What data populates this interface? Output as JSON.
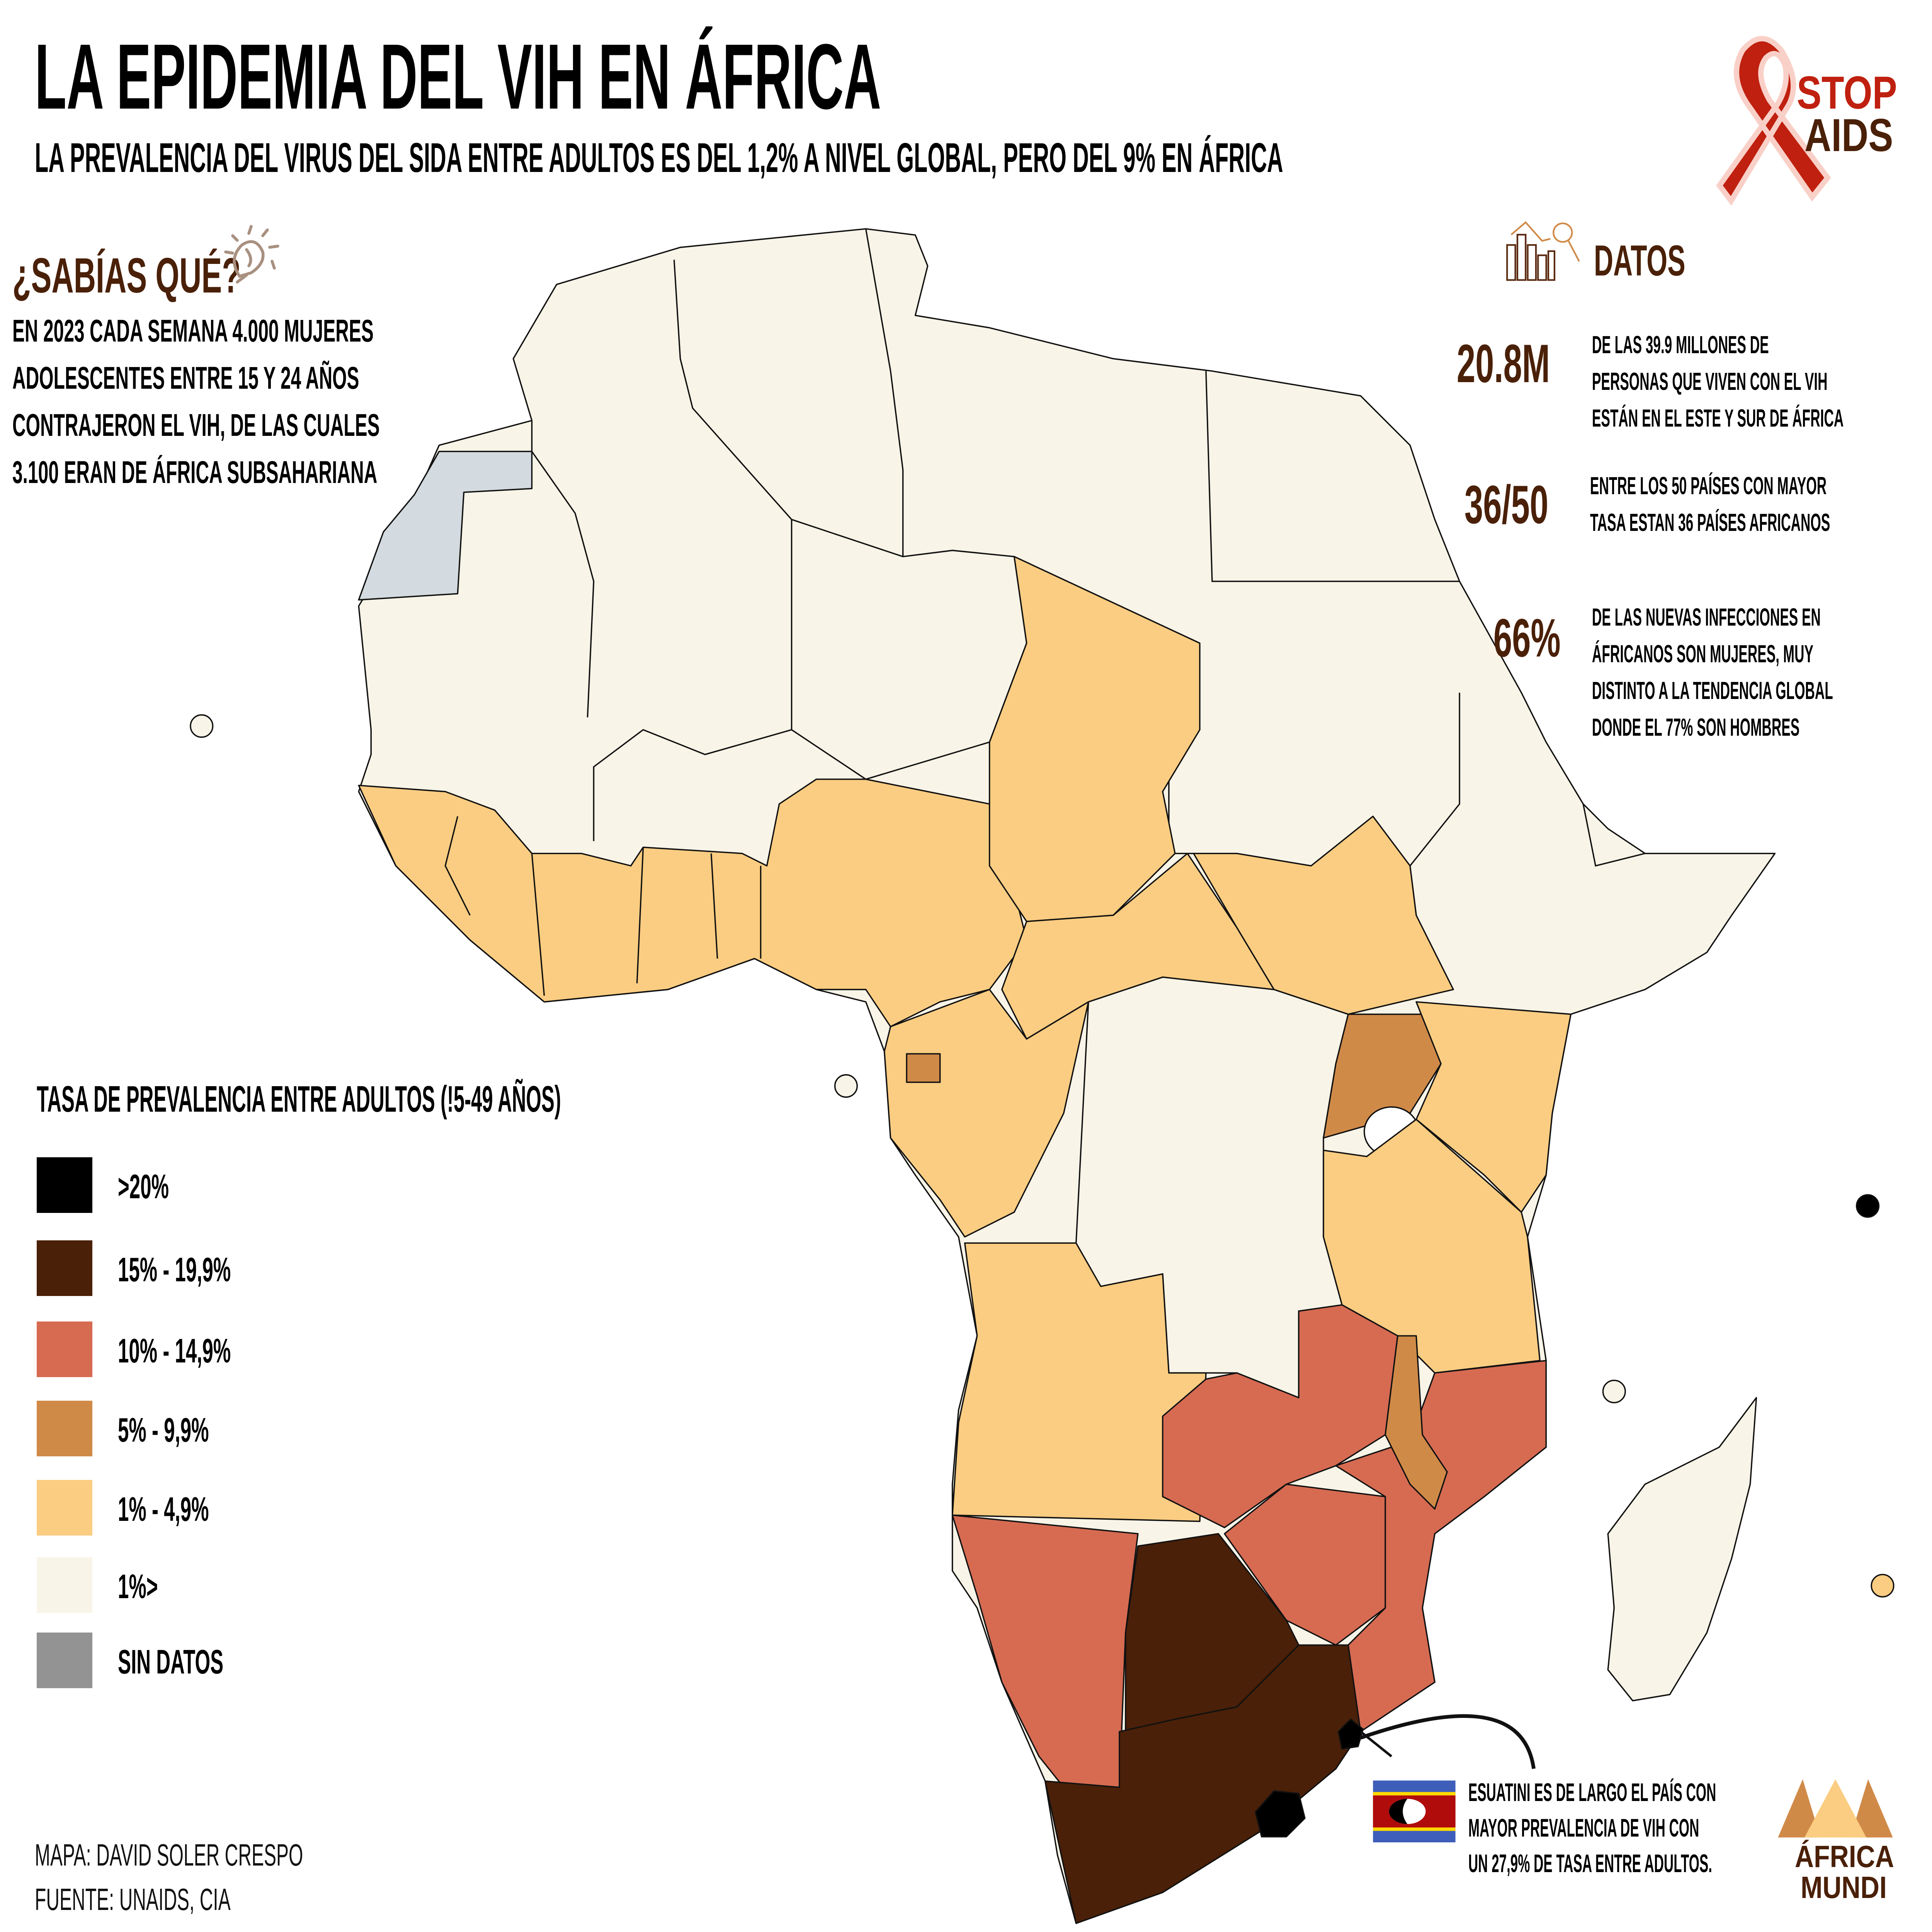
{
  "header": {
    "title": "LA EPIDEMIA DEL VIH EN ÁFRICA",
    "subtitle": "LA PREVALENCIA DEL VIRUS DEL SIDA ENTRE ADULTOS ES DEL 1,2% A NIVEL GLOBAL, PERO DEL 9% EN ÁFRICA",
    "logo_text": [
      "STOP",
      "AIDS"
    ]
  },
  "did_you_know": {
    "heading": "¿SABÍAS QUÉ?",
    "icon": "lightbulb-icon",
    "lines": [
      "EN 2023 CADA SEMANA 4.000 MUJERES",
      "ADOLESCENTES ENTRE  15 Y 24 AÑOS",
      "CONTRAJERON EL VIH, DE LAS CUALES",
      "3.100 ERAN DE ÁFRICA SUBSAHARIANA"
    ]
  },
  "facts": {
    "heading": "DATOS",
    "icon": "chart-magnifier-icon",
    "items": [
      {
        "number": "20.8M",
        "lines": [
          "DE LAS 39.9 MILLONES DE",
          "PERSONAS QUE VIVEN CON EL VIH",
          "ESTÁN EN EL ESTE Y SUR DE ÁFRICA"
        ]
      },
      {
        "number": "36/50",
        "lines": [
          "ENTRE LOS 50 PAÍSES CON MAYOR",
          "TASA ESTAN 36 PAÍSES AFRICANOS"
        ]
      },
      {
        "number": "66%",
        "lines": [
          "DE LAS NUEVAS INFECCIONES EN",
          "ÁFRICANOS SON MUJERES, MUY",
          "DISTINTO A LA TENDENCIA GLOBAL",
          "DONDE EL 77% SON HOMBRES"
        ]
      }
    ]
  },
  "legend": {
    "title": "TASA DE PREVALENCIA ENTRE ADULTOS (!5-49 AÑOS)",
    "items": [
      {
        "label": ">20%",
        "color": "#000000"
      },
      {
        "label": "15% - 19,9%",
        "color": "#4a2008"
      },
      {
        "label": "10% - 14,9%",
        "color": "#d66b52"
      },
      {
        "label": "5% - 9,9%",
        "color": "#d08a48"
      },
      {
        "label": "1% - 4,9%",
        "color": "#fbcd82"
      },
      {
        "label": "1%>",
        "color": "#f8f4e7"
      },
      {
        "label": "SIN DATOS",
        "color": "#939393"
      }
    ]
  },
  "callout": {
    "flag": "eswatini-flag",
    "lines": [
      "ESUATINI ES DE LARGO EL PAÍS CON",
      "MAYOR PREVALENCIA DE VIH CON",
      "UN 27,9% DE TASA ENTRE ADULTOS."
    ]
  },
  "credits": {
    "map": "MAPA: DAVID SOLER CRESPO",
    "source": "FUENTE: UNAIDS, CIA"
  },
  "brand": {
    "logo_text": [
      "ÁFRICA",
      "MUNDI"
    ]
  }
}
